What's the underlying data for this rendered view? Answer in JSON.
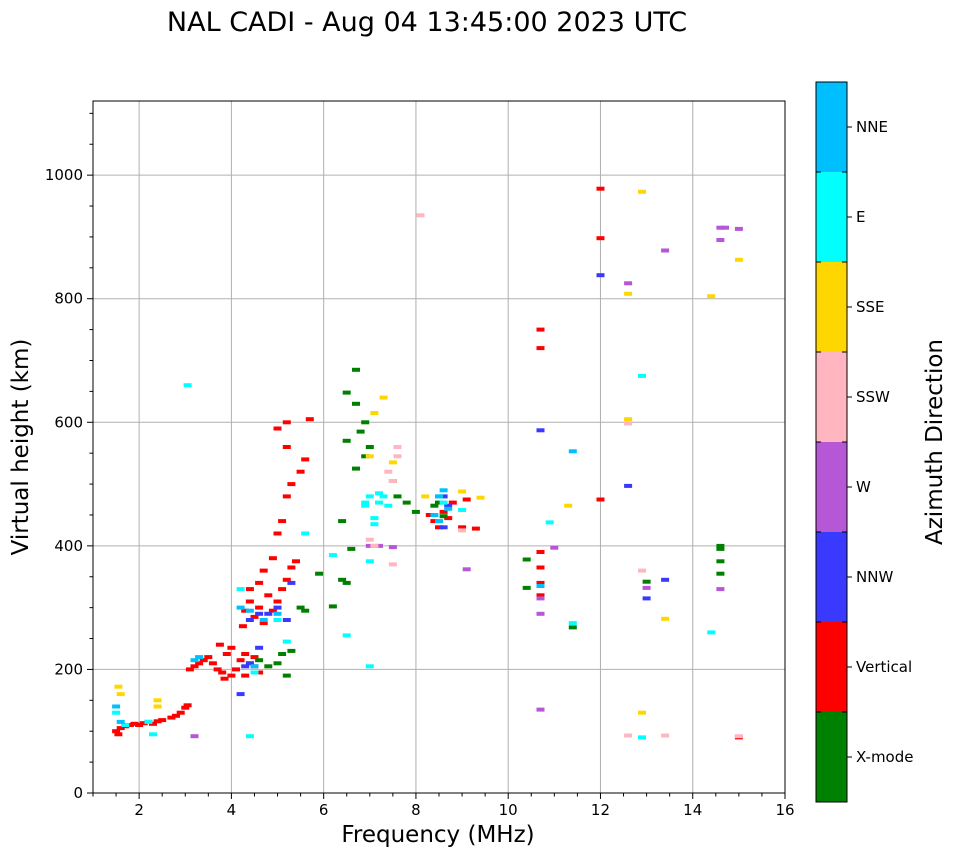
{
  "chart_data": {
    "type": "scatter",
    "title": "NAL CADI - Aug 04 13:45:00 2023 UTC",
    "xlabel": "Frequency (MHz)",
    "ylabel": "Virtual height (km)",
    "xlim": [
      1,
      16
    ],
    "ylim": [
      0,
      1120
    ],
    "xticks": [
      "2",
      "4",
      "6",
      "8",
      "10",
      "12",
      "14",
      "16"
    ],
    "yticks": [
      "0",
      "200",
      "400",
      "600",
      "800",
      "1000"
    ],
    "grid": true,
    "colorbar": {
      "label": "Azimuth Direction",
      "categories": [
        {
          "name": "X-mode",
          "color": "#008000"
        },
        {
          "name": "Vertical",
          "color": "#ff0000"
        },
        {
          "name": "NNW",
          "color": "#3a3aff"
        },
        {
          "name": "W",
          "color": "#b557d6"
        },
        {
          "name": "SSW",
          "color": "#ffb6c1"
        },
        {
          "name": "SSE",
          "color": "#ffd700"
        },
        {
          "name": "E",
          "color": "#00ffff"
        },
        {
          "name": "NNE",
          "color": "#00bfff"
        }
      ]
    },
    "series": [
      {
        "name": "Vertical",
        "points": [
          [
            1.5,
            100
          ],
          [
            1.55,
            95
          ],
          [
            1.6,
            105
          ],
          [
            1.7,
            108
          ],
          [
            1.8,
            110
          ],
          [
            1.9,
            112
          ],
          [
            2.0,
            110
          ],
          [
            2.1,
            113
          ],
          [
            2.2,
            115
          ],
          [
            2.3,
            112
          ],
          [
            2.4,
            116
          ],
          [
            2.5,
            118
          ],
          [
            2.7,
            122
          ],
          [
            2.8,
            125
          ],
          [
            2.9,
            130
          ],
          [
            3.0,
            138
          ],
          [
            3.05,
            142
          ],
          [
            3.1,
            200
          ],
          [
            3.2,
            205
          ],
          [
            3.3,
            210
          ],
          [
            3.4,
            215
          ],
          [
            3.5,
            220
          ],
          [
            3.6,
            210
          ],
          [
            3.7,
            200
          ],
          [
            3.8,
            195
          ],
          [
            3.9,
            225
          ],
          [
            4.0,
            235
          ],
          [
            4.0,
            190
          ],
          [
            3.75,
            240
          ],
          [
            3.85,
            185
          ],
          [
            4.1,
            200
          ],
          [
            4.2,
            215
          ],
          [
            4.3,
            225
          ],
          [
            4.4,
            210
          ],
          [
            4.5,
            205
          ],
          [
            4.6,
            195
          ],
          [
            4.3,
            190
          ],
          [
            4.5,
            220
          ],
          [
            4.25,
            270
          ],
          [
            4.3,
            295
          ],
          [
            4.4,
            310
          ],
          [
            4.5,
            285
          ],
          [
            4.6,
            300
          ],
          [
            4.7,
            275
          ],
          [
            4.8,
            320
          ],
          [
            4.9,
            295
          ],
          [
            5.0,
            310
          ],
          [
            5.1,
            330
          ],
          [
            5.2,
            345
          ],
          [
            5.3,
            365
          ],
          [
            5.4,
            375
          ],
          [
            4.4,
            330
          ],
          [
            4.6,
            340
          ],
          [
            4.7,
            360
          ],
          [
            4.9,
            380
          ],
          [
            5.0,
            420
          ],
          [
            5.1,
            440
          ],
          [
            5.2,
            480
          ],
          [
            5.3,
            500
          ],
          [
            5.5,
            520
          ],
          [
            5.6,
            540
          ],
          [
            5.2,
            560
          ],
          [
            5.0,
            590
          ],
          [
            5.2,
            600
          ],
          [
            5.7,
            605
          ],
          [
            8.3,
            450
          ],
          [
            8.4,
            440
          ],
          [
            8.5,
            430
          ],
          [
            8.6,
            455
          ],
          [
            8.7,
            445
          ],
          [
            8.8,
            470
          ],
          [
            9.0,
            430
          ],
          [
            9.1,
            475
          ],
          [
            9.3,
            428
          ],
          [
            10.7,
            750
          ],
          [
            10.7,
            720
          ],
          [
            10.7,
            390
          ],
          [
            10.7,
            365
          ],
          [
            10.7,
            340
          ],
          [
            10.7,
            320
          ],
          [
            12.0,
            978
          ],
          [
            12.0,
            898
          ],
          [
            12.0,
            475
          ],
          [
            15.0,
            90
          ]
        ]
      },
      {
        "name": "X-mode",
        "points": [
          [
            4.6,
            215
          ],
          [
            4.8,
            205
          ],
          [
            5.0,
            210
          ],
          [
            5.1,
            225
          ],
          [
            5.2,
            190
          ],
          [
            5.3,
            230
          ],
          [
            5.5,
            300
          ],
          [
            5.6,
            295
          ],
          [
            5.9,
            355
          ],
          [
            6.2,
            302
          ],
          [
            6.4,
            345
          ],
          [
            6.5,
            340
          ],
          [
            6.6,
            395
          ],
          [
            6.4,
            440
          ],
          [
            6.7,
            525
          ],
          [
            6.8,
            585
          ],
          [
            6.9,
            600
          ],
          [
            6.5,
            570
          ],
          [
            6.7,
            630
          ],
          [
            6.5,
            648
          ],
          [
            6.7,
            685
          ],
          [
            6.9,
            545
          ],
          [
            7.0,
            560
          ],
          [
            7.5,
            505
          ],
          [
            7.6,
            480
          ],
          [
            7.8,
            470
          ],
          [
            8.0,
            455
          ],
          [
            8.4,
            465
          ],
          [
            8.5,
            470
          ],
          [
            8.6,
            448
          ],
          [
            10.4,
            378
          ],
          [
            10.4,
            332
          ],
          [
            11.4,
            268
          ],
          [
            13.0,
            342
          ],
          [
            14.6,
            400
          ],
          [
            14.6,
            395
          ],
          [
            14.6,
            375
          ],
          [
            14.6,
            355
          ]
        ]
      },
      {
        "name": "NNW",
        "points": [
          [
            4.2,
            160
          ],
          [
            4.3,
            205
          ],
          [
            4.4,
            210
          ],
          [
            4.6,
            235
          ],
          [
            4.4,
            280
          ],
          [
            4.6,
            290
          ],
          [
            4.8,
            290
          ],
          [
            5.0,
            300
          ],
          [
            5.3,
            340
          ],
          [
            5.2,
            280
          ],
          [
            8.6,
            480
          ],
          [
            8.7,
            465
          ],
          [
            8.6,
            430
          ],
          [
            10.7,
            587
          ],
          [
            10.7,
            335
          ],
          [
            12.6,
            497
          ],
          [
            13.0,
            315
          ],
          [
            13.4,
            345
          ],
          [
            12.0,
            838
          ]
        ]
      },
      {
        "name": "W",
        "points": [
          [
            3.2,
            92
          ],
          [
            7.0,
            400
          ],
          [
            7.2,
            400
          ],
          [
            7.5,
            398
          ],
          [
            9.1,
            362
          ],
          [
            10.7,
            290
          ],
          [
            10.7,
            135
          ],
          [
            10.7,
            315
          ],
          [
            11.0,
            397
          ],
          [
            12.6,
            825
          ],
          [
            13.4,
            878
          ],
          [
            14.6,
            915
          ],
          [
            14.7,
            915
          ],
          [
            15.0,
            913
          ],
          [
            14.6,
            895
          ],
          [
            14.6,
            330
          ],
          [
            13.0,
            332
          ]
        ]
      },
      {
        "name": "SSW",
        "points": [
          [
            7.0,
            410
          ],
          [
            7.1,
            400
          ],
          [
            7.5,
            370
          ],
          [
            7.6,
            545
          ],
          [
            7.6,
            560
          ],
          [
            7.4,
            520
          ],
          [
            7.5,
            505
          ],
          [
            8.1,
            935
          ],
          [
            12.6,
            598
          ],
          [
            12.6,
            93
          ],
          [
            12.9,
            360
          ],
          [
            13.4,
            93
          ],
          [
            15.0,
            92
          ],
          [
            9.0,
            425
          ]
        ]
      },
      {
        "name": "SSE",
        "points": [
          [
            1.55,
            172
          ],
          [
            1.6,
            160
          ],
          [
            2.4,
            150
          ],
          [
            2.4,
            140
          ],
          [
            7.0,
            545
          ],
          [
            7.1,
            615
          ],
          [
            7.3,
            640
          ],
          [
            7.5,
            535
          ],
          [
            8.2,
            480
          ],
          [
            9.0,
            488
          ],
          [
            9.4,
            478
          ],
          [
            11.3,
            465
          ],
          [
            12.6,
            808
          ],
          [
            12.6,
            605
          ],
          [
            12.9,
            973
          ],
          [
            12.9,
            130
          ],
          [
            13.4,
            282
          ],
          [
            14.4,
            804
          ],
          [
            15.0,
            863
          ]
        ]
      },
      {
        "name": "E",
        "points": [
          [
            1.5,
            130
          ],
          [
            1.7,
            110
          ],
          [
            2.3,
            95
          ],
          [
            2.2,
            115
          ],
          [
            3.05,
            660
          ],
          [
            4.2,
            330
          ],
          [
            4.4,
            92
          ],
          [
            4.5,
            195
          ],
          [
            5.0,
            280
          ],
          [
            5.2,
            245
          ],
          [
            5.6,
            420
          ],
          [
            6.2,
            385
          ],
          [
            6.5,
            255
          ],
          [
            6.9,
            470
          ],
          [
            7.0,
            480
          ],
          [
            7.2,
            470
          ],
          [
            7.3,
            480
          ],
          [
            7.0,
            375
          ],
          [
            7.0,
            205
          ],
          [
            7.2,
            485
          ],
          [
            7.4,
            465
          ],
          [
            7.1,
            435
          ],
          [
            6.9,
            465
          ],
          [
            7.1,
            445
          ],
          [
            8.5,
            480
          ],
          [
            8.6,
            470
          ],
          [
            9.0,
            458
          ],
          [
            10.9,
            438
          ],
          [
            11.4,
            275
          ],
          [
            12.9,
            675
          ],
          [
            12.9,
            90
          ],
          [
            14.4,
            260
          ]
        ]
      },
      {
        "name": "NNE",
        "points": [
          [
            1.5,
            140
          ],
          [
            1.6,
            115
          ],
          [
            3.2,
            215
          ],
          [
            3.3,
            220
          ],
          [
            4.2,
            300
          ],
          [
            4.4,
            295
          ],
          [
            4.5,
            205
          ],
          [
            4.7,
            280
          ],
          [
            5.0,
            290
          ],
          [
            8.4,
            450
          ],
          [
            8.5,
            440
          ],
          [
            8.7,
            460
          ],
          [
            8.5,
            480
          ],
          [
            8.6,
            490
          ],
          [
            11.4,
            553
          ],
          [
            10.7,
            335
          ]
        ]
      }
    ]
  }
}
